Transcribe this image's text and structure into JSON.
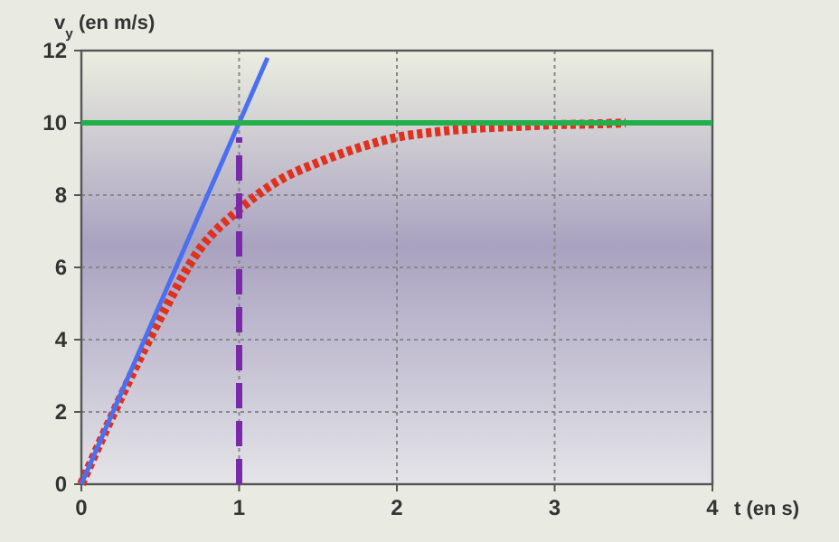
{
  "chart_data": {
    "type": "line",
    "ylabel": "v$_{y}$ (en m/s)",
    "xlabel": "t (en s)",
    "xlim": [
      0,
      4
    ],
    "ylim": [
      0,
      12
    ],
    "xticks": [
      0,
      1,
      2,
      3,
      4
    ],
    "yticks": [
      0,
      2,
      4,
      6,
      8,
      10,
      12
    ],
    "grid": true,
    "marker": "none",
    "series": [
      {
        "color": "#e0301e",
        "line_style": "dotted",
        "x": [
          0,
          0.25,
          0.5,
          0.75,
          1,
          1.25,
          1.5,
          1.75,
          2,
          2.25,
          2.5,
          2.75,
          3,
          3.25,
          3.45
        ],
        "values": [
          0,
          2.4,
          4.6,
          6.5,
          7.6,
          8.4,
          8.9,
          9.3,
          9.6,
          9.75,
          9.85,
          9.9,
          9.95,
          9.97,
          10
        ]
      },
      {
        "color": "#4a6ff0",
        "line_style": "solid",
        "x": [
          0,
          1.18
        ],
        "values": [
          0,
          11.8
        ]
      },
      {
        "color": "#7a2aa8",
        "line_style": "dashed",
        "x": [
          1,
          1
        ],
        "values": [
          0,
          9.6
        ]
      }
    ],
    "ref_lines": [
      {
        "axis": "y",
        "value": 10,
        "color": "#22b04a",
        "line_style": "solid"
      }
    ]
  }
}
